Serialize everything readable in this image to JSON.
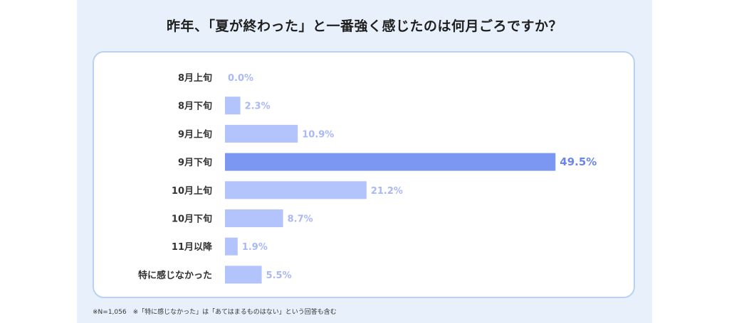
{
  "title": "昨年、「夏が終わった」と一番強く感じたのは何月ごろですか？",
  "footnote": "※N=1,056　※「特に感じなかった」は「あてはまるものはない」という回答も含む",
  "colors": {
    "panel_bg": "#e8f1fb",
    "bar": "#b3c3fb",
    "bar_highlight": "#7b97f2",
    "label": "#a9b8f6",
    "label_highlight": "#6b86ea",
    "category_text": "#333333"
  },
  "chart_data": {
    "type": "bar",
    "orientation": "horizontal",
    "categories": [
      "8月上旬",
      "8月下旬",
      "9月上旬",
      "9月下旬",
      "10月上旬",
      "10月下旬",
      "11月以降",
      "特に感じなかった"
    ],
    "values": [
      0.0,
      2.3,
      10.9,
      49.5,
      21.2,
      8.7,
      1.9,
      5.5
    ],
    "value_labels": [
      "0.0%",
      "2.3%",
      "10.9%",
      "49.5%",
      "21.2%",
      "8.7%",
      "1.9%",
      "5.5%"
    ],
    "highlight_index": 3,
    "unit": "%",
    "title": "昨年、「夏が終わった」と一番強く感じたのは何月ごろですか？",
    "xlabel": "",
    "ylabel": "",
    "xlim": [
      0,
      50
    ],
    "grid": false,
    "legend": "none"
  }
}
